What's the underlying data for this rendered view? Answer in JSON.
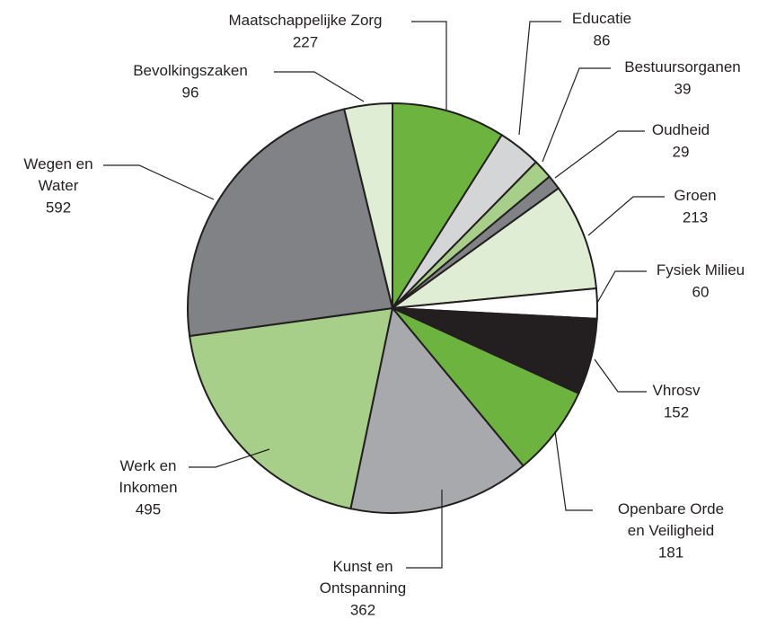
{
  "chart_data": {
    "type": "pie",
    "categories": [
      "Maatschappelijke Zorg",
      "Educatie",
      "Bestuursorganen",
      "Oudheid",
      "Groen",
      "Fysiek Milieu",
      "Vhrosv",
      "Openbare Orde\nen Veiligheid",
      "Kunst en\nOntspanning",
      "Werk en\nInkomen",
      "Wegen en\nWater",
      "Bevolkingszaken"
    ],
    "values": [
      227,
      86,
      39,
      29,
      213,
      60,
      152,
      181,
      362,
      495,
      592,
      96
    ],
    "colors": [
      "#6db33f",
      "#d4d5d6",
      "#a8cf8a",
      "#808285",
      "#e0edd5",
      "#ffffff",
      "#231f20",
      "#6db33f",
      "#a7a9ac",
      "#a8cf8a",
      "#808285",
      "#e0edd5"
    ]
  }
}
